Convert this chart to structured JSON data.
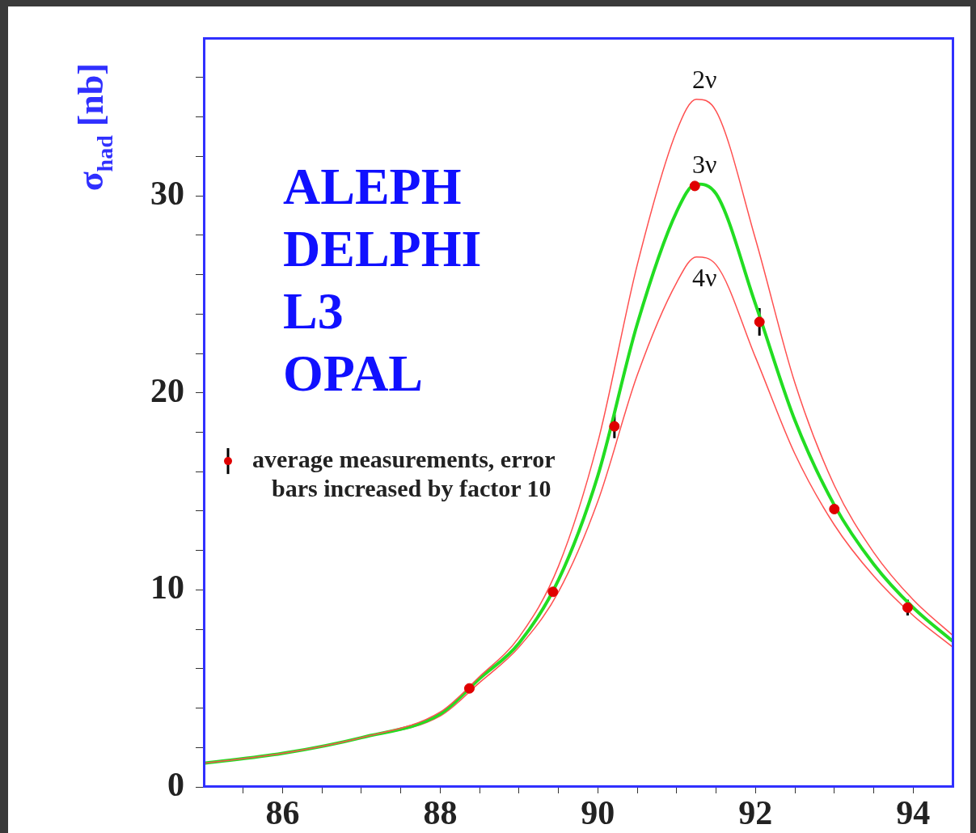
{
  "chart_data": {
    "type": "line",
    "ylabel": "σ$_{had}$ [nb]",
    "annotations": [
      "ALEPH",
      "DELPHI",
      "L3",
      "OPAL"
    ],
    "xlim": [
      85,
      94.5
    ],
    "xticks": [
      {
        "value": 85.5,
        "label": null
      },
      86,
      {
        "value": 86.5,
        "label": null
      },
      {
        "value": 87,
        "label": null
      },
      {
        "value": 87.5,
        "label": null
      },
      88,
      {
        "value": 88.5,
        "label": null
      },
      {
        "value": 89,
        "label": null
      },
      {
        "value": 89.5,
        "label": null
      },
      90,
      {
        "value": 90.5,
        "label": null
      },
      {
        "value": 91,
        "label": null
      },
      {
        "value": 91.5,
        "label": null
      },
      92,
      {
        "value": 92.5,
        "label": null
      },
      {
        "value": 93,
        "label": null
      },
      {
        "value": 93.5,
        "label": null
      },
      94
    ],
    "ylim": [
      0,
      38
    ],
    "yticks": [
      0,
      {
        "value": 2,
        "label": null
      },
      {
        "value": 4,
        "label": null
      },
      {
        "value": 6,
        "label": null
      },
      {
        "value": 8,
        "label": null
      },
      10,
      {
        "value": 12,
        "label": null
      },
      {
        "value": 14,
        "label": null
      },
      {
        "value": 16,
        "label": null
      },
      {
        "value": 18,
        "label": null
      },
      20,
      {
        "value": 22,
        "label": null
      },
      {
        "value": 24,
        "label": null
      },
      {
        "value": 26,
        "label": null
      },
      {
        "value": 28,
        "label": null
      },
      30,
      {
        "value": 32,
        "label": null
      },
      {
        "value": 34,
        "label": null
      },
      {
        "value": 36,
        "label": null
      }
    ],
    "grid": false,
    "legend": "left",
    "x": [
      85,
      86,
      87,
      88,
      88.5,
      89,
      89.5,
      90,
      90.5,
      91,
      91.25,
      91.5,
      92,
      92.5,
      93,
      93.5,
      94,
      94.5
    ],
    "series": [
      {
        "name": "2ν",
        "color": "#ff5050",
        "marker": "none",
        "values": [
          1.2,
          1.7,
          2.5,
          3.8,
          5.6,
          7.6,
          11.2,
          17.5,
          26.5,
          33.3,
          34.9,
          34.3,
          27.8,
          20.5,
          15.3,
          11.9,
          9.5,
          7.7
        ]
      },
      {
        "name": "3ν",
        "color": "#22dd22",
        "marker": "none",
        "values": [
          1.2,
          1.7,
          2.5,
          3.7,
          5.5,
          7.3,
          10.5,
          15.8,
          23.5,
          29.2,
          30.6,
          30.1,
          24.5,
          18.6,
          14.3,
          11.3,
          9.1,
          7.4
        ]
      },
      {
        "name": "4ν",
        "color": "#ff5050",
        "marker": "none",
        "values": [
          1.2,
          1.7,
          2.5,
          3.6,
          5.3,
          7.1,
          9.9,
          14.5,
          20.9,
          25.6,
          26.9,
          26.5,
          21.8,
          16.9,
          13.3,
          10.7,
          8.7,
          7.1
        ]
      },
      {
        "name": "average measurements, error bars increased by factor 10",
        "type": "scatter",
        "color": "#e00000",
        "marker": "circle",
        "x": [
          88.37,
          89.43,
          90.21,
          91.23,
          92.05,
          93.0,
          93.93
        ],
        "values": [
          5.0,
          9.9,
          18.3,
          30.5,
          23.6,
          14.1,
          9.1
        ],
        "errors": [
          null,
          null,
          0.6,
          null,
          0.7,
          null,
          0.4
        ]
      }
    ]
  }
}
